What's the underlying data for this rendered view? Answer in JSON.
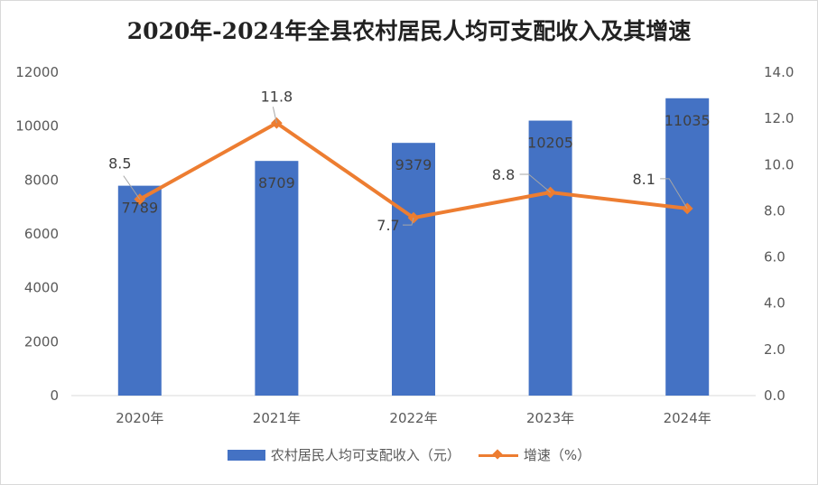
{
  "chart_data": {
    "type": "bar",
    "title": "2020年-2024年全县农村居民人均可支配收入及其增速",
    "categories": [
      "2020年",
      "2021年",
      "2022年",
      "2023年",
      "2024年"
    ],
    "series": [
      {
        "name": "农村居民人均可支配收入（元）",
        "type": "bar",
        "axis": "left",
        "values": [
          7789,
          8709,
          9379,
          10205,
          11035
        ],
        "labels": [
          "7789",
          "8709",
          "9379",
          "10205",
          "11035"
        ],
        "color": "#4472C4"
      },
      {
        "name": "增速（%）",
        "type": "line",
        "axis": "right",
        "values": [
          8.5,
          11.8,
          7.7,
          8.8,
          8.1
        ],
        "labels": [
          "8.5",
          "11.8",
          "7.7",
          "8.8",
          "8.1"
        ],
        "color": "#ED7D31"
      }
    ],
    "y_left": {
      "range": [
        0,
        12000
      ],
      "ticks": [
        "0",
        "2000",
        "4000",
        "6000",
        "8000",
        "10000",
        "12000"
      ]
    },
    "y_right": {
      "range": [
        0,
        14
      ],
      "ticks": [
        "0.0",
        "2.0",
        "4.0",
        "6.0",
        "8.0",
        "10.0",
        "12.0",
        "14.0"
      ]
    },
    "grid": false,
    "legend": "bottom"
  }
}
